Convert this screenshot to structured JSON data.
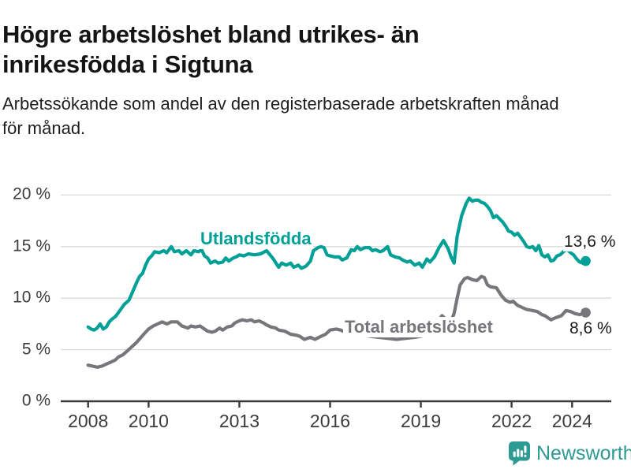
{
  "header": {
    "title_lines": [
      "Högre arbetslöshet bland utrikes- än",
      "inrikesfödda i Sigtuna"
    ],
    "subtitle_lines": [
      "Arbetssökande som andel av den registerbaserade arbetskraften månad",
      "för månad."
    ]
  },
  "chart_data": {
    "type": "line",
    "title": "Högre arbetslöshet bland utrikes- än inrikesfödda i Sigtuna",
    "subtitle": "Arbetssökande som andel av den registerbaserade arbetskraften månad för månad.",
    "unit": "%",
    "grid": "horizontal",
    "legend_position": "inline-labels",
    "x_axis": {
      "tick_labels": [
        "2008",
        "2010",
        "2013",
        "2016",
        "2019",
        "2022",
        "2024"
      ],
      "tick_years": [
        2008,
        2010,
        2013,
        2016,
        2019,
        2022,
        2024
      ],
      "range": [
        2008,
        2024.6
      ]
    },
    "y_axis": {
      "tick_labels": [
        "0 %",
        "5 %",
        "10 %",
        "15 %",
        "20 %"
      ],
      "tick_values": [
        0,
        5,
        10,
        15,
        20
      ],
      "range": [
        0,
        20.6
      ]
    },
    "series": [
      {
        "key": "utlandsfodda",
        "name": "Utlandsfödda",
        "color": "#00a096",
        "end_value": 13.6,
        "end_value_label": "13,6 %",
        "points": [
          [
            2008.0,
            7.2
          ],
          [
            2008.1,
            7.0
          ],
          [
            2008.2,
            6.9
          ],
          [
            2008.3,
            7.1
          ],
          [
            2008.4,
            7.5
          ],
          [
            2008.5,
            7.0
          ],
          [
            2008.6,
            7.2
          ],
          [
            2008.7,
            7.7
          ],
          [
            2008.8,
            8.0
          ],
          [
            2008.9,
            8.2
          ],
          [
            2009.0,
            8.6
          ],
          [
            2009.1,
            9.0
          ],
          [
            2009.2,
            9.4
          ],
          [
            2009.35,
            9.8
          ],
          [
            2009.5,
            10.8
          ],
          [
            2009.6,
            11.5
          ],
          [
            2009.7,
            12.1
          ],
          [
            2009.8,
            12.4
          ],
          [
            2009.9,
            13.2
          ],
          [
            2010.0,
            13.8
          ],
          [
            2010.1,
            14.1
          ],
          [
            2010.2,
            14.5
          ],
          [
            2010.35,
            14.4
          ],
          [
            2010.5,
            14.6
          ],
          [
            2010.6,
            14.4
          ],
          [
            2010.75,
            15.0
          ],
          [
            2010.85,
            14.5
          ],
          [
            2011.0,
            14.6
          ],
          [
            2011.1,
            14.3
          ],
          [
            2011.25,
            14.6
          ],
          [
            2011.4,
            14.2
          ],
          [
            2011.5,
            14.6
          ],
          [
            2011.65,
            14.5
          ],
          [
            2011.75,
            14.7
          ],
          [
            2011.85,
            14.1
          ],
          [
            2011.95,
            13.9
          ],
          [
            2012.05,
            13.4
          ],
          [
            2012.2,
            13.6
          ],
          [
            2012.3,
            13.4
          ],
          [
            2012.45,
            13.5
          ],
          [
            2012.55,
            13.9
          ],
          [
            2012.65,
            13.6
          ],
          [
            2012.8,
            13.9
          ],
          [
            2012.9,
            14.0
          ],
          [
            2013.0,
            14.2
          ],
          [
            2013.15,
            14.1
          ],
          [
            2013.3,
            14.3
          ],
          [
            2013.5,
            14.2
          ],
          [
            2013.7,
            14.3
          ],
          [
            2013.9,
            14.6
          ],
          [
            2014.1,
            13.9
          ],
          [
            2014.3,
            13.0
          ],
          [
            2014.4,
            13.4
          ],
          [
            2014.55,
            13.2
          ],
          [
            2014.7,
            13.4
          ],
          [
            2014.8,
            13.0
          ],
          [
            2014.95,
            13.2
          ],
          [
            2015.05,
            12.9
          ],
          [
            2015.2,
            13.1
          ],
          [
            2015.35,
            13.6
          ],
          [
            2015.45,
            14.6
          ],
          [
            2015.6,
            14.9
          ],
          [
            2015.7,
            15.0
          ],
          [
            2015.8,
            14.9
          ],
          [
            2015.9,
            14.2
          ],
          [
            2016.0,
            14.1
          ],
          [
            2016.15,
            14.0
          ],
          [
            2016.3,
            14.0
          ],
          [
            2016.4,
            13.7
          ],
          [
            2016.55,
            13.9
          ],
          [
            2016.7,
            14.7
          ],
          [
            2016.8,
            14.6
          ],
          [
            2016.9,
            15.0
          ],
          [
            2017.0,
            14.7
          ],
          [
            2017.15,
            14.9
          ],
          [
            2017.3,
            14.9
          ],
          [
            2017.4,
            14.6
          ],
          [
            2017.5,
            14.7
          ],
          [
            2017.65,
            14.5
          ],
          [
            2017.75,
            14.6
          ],
          [
            2017.9,
            15.0
          ],
          [
            2018.0,
            14.2
          ],
          [
            2018.15,
            14.0
          ],
          [
            2018.3,
            13.9
          ],
          [
            2018.4,
            13.7
          ],
          [
            2018.55,
            13.5
          ],
          [
            2018.65,
            13.6
          ],
          [
            2018.8,
            13.2
          ],
          [
            2018.95,
            13.4
          ],
          [
            2019.05,
            13.0
          ],
          [
            2019.2,
            13.8
          ],
          [
            2019.3,
            13.5
          ],
          [
            2019.45,
            14.0
          ],
          [
            2019.6,
            14.9
          ],
          [
            2019.75,
            15.6
          ],
          [
            2019.9,
            14.8
          ],
          [
            2020.0,
            14.0
          ],
          [
            2020.1,
            13.4
          ],
          [
            2020.2,
            16.0
          ],
          [
            2020.35,
            18.0
          ],
          [
            2020.5,
            19.2
          ],
          [
            2020.6,
            19.7
          ],
          [
            2020.7,
            19.4
          ],
          [
            2020.8,
            19.5
          ],
          [
            2020.9,
            19.5
          ],
          [
            2021.0,
            19.3
          ],
          [
            2021.1,
            19.2
          ],
          [
            2021.2,
            18.9
          ],
          [
            2021.3,
            18.5
          ],
          [
            2021.4,
            17.8
          ],
          [
            2021.5,
            18.0
          ],
          [
            2021.6,
            17.7
          ],
          [
            2021.7,
            17.4
          ],
          [
            2021.8,
            17.0
          ],
          [
            2021.9,
            16.5
          ],
          [
            2022.0,
            16.4
          ],
          [
            2022.1,
            16.1
          ],
          [
            2022.2,
            16.3
          ],
          [
            2022.3,
            15.9
          ],
          [
            2022.4,
            15.5
          ],
          [
            2022.5,
            15.0
          ],
          [
            2022.6,
            14.9
          ],
          [
            2022.7,
            15.0
          ],
          [
            2022.8,
            14.6
          ],
          [
            2022.9,
            15.1
          ],
          [
            2023.0,
            14.2
          ],
          [
            2023.1,
            14.0
          ],
          [
            2023.2,
            14.2
          ],
          [
            2023.3,
            13.6
          ],
          [
            2023.4,
            13.7
          ],
          [
            2023.5,
            14.1
          ],
          [
            2023.6,
            14.2
          ],
          [
            2023.75,
            14.6
          ],
          [
            2023.85,
            14.7
          ],
          [
            2023.95,
            14.4
          ],
          [
            2024.05,
            14.2
          ],
          [
            2024.15,
            13.8
          ],
          [
            2024.25,
            13.5
          ],
          [
            2024.35,
            13.4
          ],
          [
            2024.45,
            13.6
          ]
        ]
      },
      {
        "key": "total",
        "name": "Total arbetslöshet",
        "color": "#77777b",
        "end_value": 8.6,
        "end_value_label": "8,6 %",
        "points": [
          [
            2008.0,
            3.5
          ],
          [
            2008.15,
            3.4
          ],
          [
            2008.3,
            3.3
          ],
          [
            2008.45,
            3.4
          ],
          [
            2008.6,
            3.6
          ],
          [
            2008.75,
            3.8
          ],
          [
            2008.9,
            4.0
          ],
          [
            2009.0,
            4.3
          ],
          [
            2009.15,
            4.5
          ],
          [
            2009.3,
            4.9
          ],
          [
            2009.45,
            5.3
          ],
          [
            2009.6,
            5.7
          ],
          [
            2009.75,
            6.2
          ],
          [
            2009.9,
            6.7
          ],
          [
            2010.0,
            7.0
          ],
          [
            2010.15,
            7.3
          ],
          [
            2010.3,
            7.5
          ],
          [
            2010.45,
            7.7
          ],
          [
            2010.6,
            7.5
          ],
          [
            2010.75,
            7.7
          ],
          [
            2010.95,
            7.7
          ],
          [
            2011.1,
            7.3
          ],
          [
            2011.3,
            7.1
          ],
          [
            2011.4,
            7.3
          ],
          [
            2011.55,
            7.2
          ],
          [
            2011.7,
            7.3
          ],
          [
            2011.8,
            7.1
          ],
          [
            2011.95,
            6.8
          ],
          [
            2012.1,
            6.7
          ],
          [
            2012.2,
            6.8
          ],
          [
            2012.35,
            7.1
          ],
          [
            2012.45,
            6.9
          ],
          [
            2012.6,
            7.2
          ],
          [
            2012.75,
            7.3
          ],
          [
            2012.85,
            7.6
          ],
          [
            2013.0,
            7.8
          ],
          [
            2013.1,
            7.9
          ],
          [
            2013.25,
            7.8
          ],
          [
            2013.4,
            7.9
          ],
          [
            2013.5,
            7.7
          ],
          [
            2013.65,
            7.8
          ],
          [
            2013.8,
            7.6
          ],
          [
            2013.9,
            7.4
          ],
          [
            2014.05,
            7.2
          ],
          [
            2014.2,
            7.1
          ],
          [
            2014.3,
            6.9
          ],
          [
            2014.5,
            6.8
          ],
          [
            2014.7,
            6.5
          ],
          [
            2014.9,
            6.4
          ],
          [
            2015.0,
            6.3
          ],
          [
            2015.15,
            6.0
          ],
          [
            2015.35,
            6.2
          ],
          [
            2015.5,
            6.0
          ],
          [
            2015.7,
            6.3
          ],
          [
            2015.85,
            6.5
          ],
          [
            2016.0,
            6.9
          ],
          [
            2016.2,
            7.0
          ],
          [
            2016.35,
            6.9
          ],
          [
            2016.5,
            6.7
          ],
          [
            2016.7,
            6.6
          ],
          [
            2016.9,
            6.5
          ],
          [
            2017.1,
            6.4
          ],
          [
            2017.3,
            6.3
          ],
          [
            2017.6,
            6.2
          ],
          [
            2017.9,
            6.1
          ],
          [
            2018.2,
            6.0
          ],
          [
            2018.5,
            6.1
          ],
          [
            2018.8,
            6.2
          ],
          [
            2019.0,
            6.3
          ],
          [
            2019.2,
            6.5
          ],
          [
            2019.4,
            6.9
          ],
          [
            2019.55,
            7.7
          ],
          [
            2019.7,
            8.3
          ],
          [
            2019.85,
            7.9
          ],
          [
            2020.0,
            7.8
          ],
          [
            2020.1,
            8.5
          ],
          [
            2020.2,
            10.0
          ],
          [
            2020.3,
            11.3
          ],
          [
            2020.45,
            11.9
          ],
          [
            2020.55,
            12.0
          ],
          [
            2020.7,
            11.8
          ],
          [
            2020.85,
            11.7
          ],
          [
            2021.0,
            12.1
          ],
          [
            2021.1,
            12.0
          ],
          [
            2021.2,
            11.3
          ],
          [
            2021.3,
            11.1
          ],
          [
            2021.5,
            11.0
          ],
          [
            2021.65,
            10.3
          ],
          [
            2021.8,
            9.8
          ],
          [
            2021.95,
            9.6
          ],
          [
            2022.05,
            9.7
          ],
          [
            2022.2,
            9.3
          ],
          [
            2022.35,
            9.1
          ],
          [
            2022.5,
            8.9
          ],
          [
            2022.7,
            8.8
          ],
          [
            2022.85,
            8.7
          ],
          [
            2023.0,
            8.4
          ],
          [
            2023.1,
            8.3
          ],
          [
            2023.3,
            7.9
          ],
          [
            2023.45,
            8.1
          ],
          [
            2023.65,
            8.3
          ],
          [
            2023.8,
            8.8
          ],
          [
            2023.95,
            8.7
          ],
          [
            2024.1,
            8.5
          ],
          [
            2024.25,
            8.4
          ],
          [
            2024.35,
            8.5
          ],
          [
            2024.45,
            8.6
          ]
        ]
      }
    ]
  },
  "logo": {
    "brand": "Newsworthy",
    "icon": "bar-chart-speech-bubble-icon"
  },
  "colors": {
    "teal": "#00a096",
    "gray": "#77777b",
    "grid": "#d9d9d9",
    "axis": "#3a3a3a",
    "tick_text": "#3c3c3c",
    "title_text": "#141414",
    "brand_teal": "#2d9a93"
  }
}
